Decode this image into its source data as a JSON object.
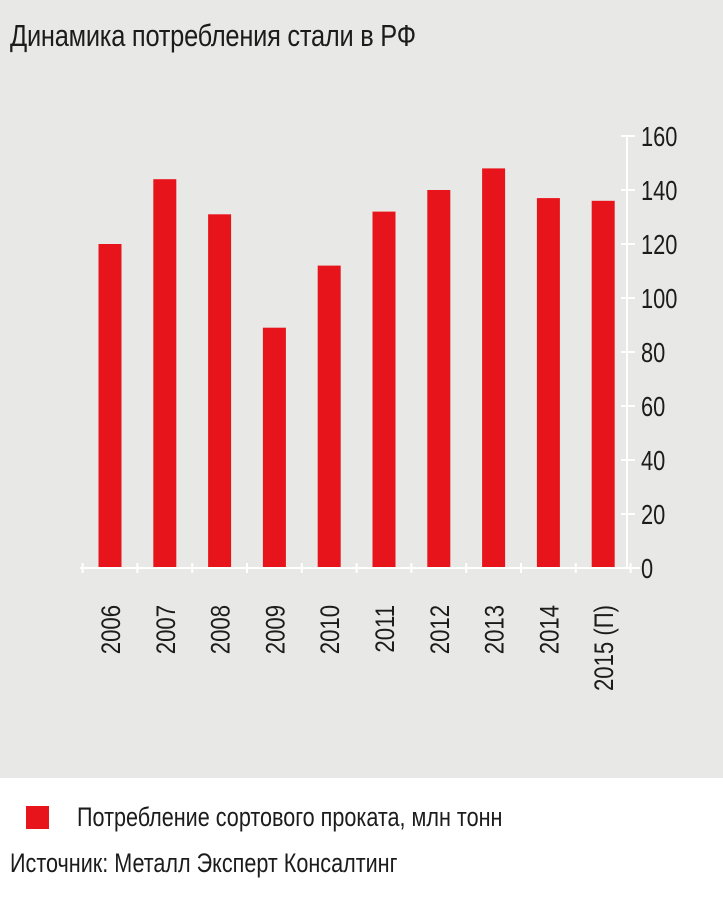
{
  "chart_data": {
    "type": "bar",
    "title": "Динамика потребления стали в РФ",
    "categories": [
      "2006",
      "2007",
      "2008",
      "2009",
      "2010",
      "2011",
      "2012",
      "2013",
      "2014",
      "2015 (П)"
    ],
    "series": [
      {
        "name": "Потребление сортового проката, млн тонн",
        "values": [
          120,
          144,
          131,
          89,
          112,
          132,
          140,
          148,
          137,
          136
        ]
      }
    ],
    "yticks": [
      "0",
      "20",
      "40",
      "60",
      "80",
      "100",
      "120",
      "140",
      "160"
    ],
    "ylim": [
      0,
      160
    ],
    "ylabel_position": "right",
    "grid": false,
    "legend_position": "bottom-left",
    "bar_color": "#e8141c"
  },
  "source": "Источник: Металл Эксперт Консалтинг"
}
